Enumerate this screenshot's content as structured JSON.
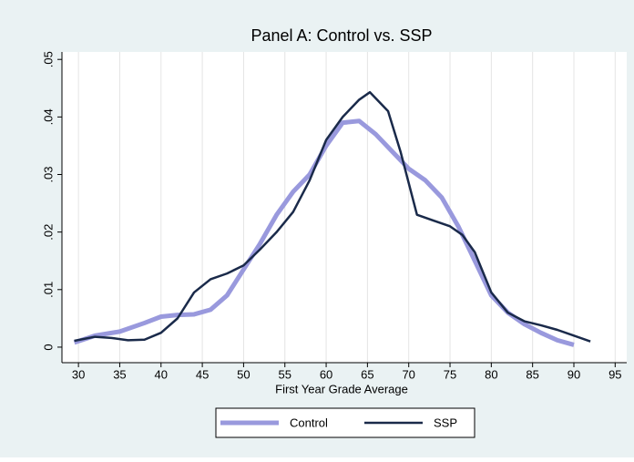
{
  "chart_data": {
    "type": "line",
    "title": "Panel A: Control vs. SSP",
    "x_label": "First Year Grade Average",
    "xlim": [
      28,
      96.4
    ],
    "ylim": [
      -0.0027,
      0.0513
    ],
    "xticks": [
      30,
      35,
      40,
      45,
      50,
      55,
      60,
      65,
      70,
      75,
      80,
      85,
      90,
      95
    ],
    "yticks": [
      0,
      {
        "value": 0.01,
        "label": ".01"
      },
      {
        "value": 0.02,
        "label": ".02"
      },
      {
        "value": 0.03,
        "label": ".03"
      },
      {
        "value": 0.04,
        "label": ".04"
      },
      {
        "value": 0.05,
        "label": ".05"
      }
    ],
    "grid": true,
    "legend": "bottom",
    "series": [
      {
        "name": "Control",
        "color": "#9999dd",
        "width": 5,
        "x": [
          29.5,
          32,
          35,
          38,
          40,
          42,
          44,
          46,
          48,
          50,
          52,
          54,
          56,
          58,
          60,
          62,
          64,
          66,
          68,
          70,
          72,
          74,
          76,
          78,
          80,
          82,
          84,
          86,
          88,
          90
        ],
        "values": [
          0.0008,
          0.002,
          0.0027,
          0.0042,
          0.0053,
          0.0056,
          0.0057,
          0.0065,
          0.009,
          0.0135,
          0.018,
          0.023,
          0.027,
          0.03,
          0.035,
          0.039,
          0.0393,
          0.037,
          0.034,
          0.031,
          0.029,
          0.026,
          0.021,
          0.015,
          0.009,
          0.006,
          0.004,
          0.0025,
          0.0012,
          0.0004
        ]
      },
      {
        "name": "SSP",
        "color": "#1a2a4a",
        "width": 2.5,
        "x": [
          29.5,
          32,
          34,
          36,
          38,
          40,
          42,
          44,
          46,
          48,
          50,
          52,
          54,
          56,
          58,
          60,
          62,
          64,
          65.3,
          67.5,
          69,
          71,
          73,
          75,
          76.5,
          78,
          80,
          82,
          84,
          86,
          88,
          90,
          92
        ],
        "values": [
          0.0011,
          0.0018,
          0.0016,
          0.0012,
          0.0013,
          0.0025,
          0.005,
          0.0095,
          0.0118,
          0.0128,
          0.0142,
          0.017,
          0.02,
          0.0235,
          0.029,
          0.036,
          0.04,
          0.043,
          0.0443,
          0.041,
          0.034,
          0.023,
          0.022,
          0.021,
          0.0195,
          0.0165,
          0.0095,
          0.006,
          0.0045,
          0.0038,
          0.003,
          0.002,
          0.001
        ]
      }
    ]
  }
}
